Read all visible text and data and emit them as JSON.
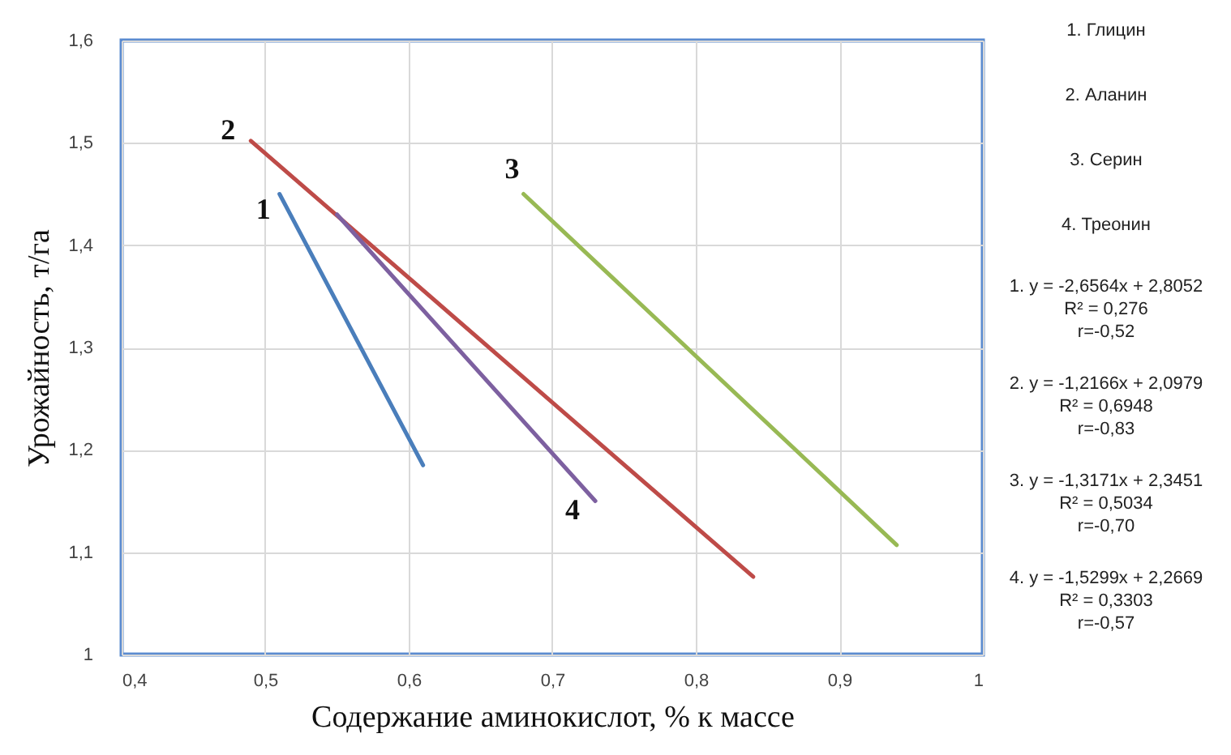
{
  "chart_data": {
    "type": "line",
    "xlabel": "Содержание аминокислот, % к массе",
    "ylabel": "Урожайность,  т/га",
    "series": [
      {
        "x": [
          0.51,
          0.61
        ],
        "values": [
          1.45,
          1.185
        ],
        "color": "#4a7ebb"
      },
      {
        "x": [
          0.49,
          0.84
        ],
        "values": [
          1.502,
          1.076
        ],
        "color": "#be4b48"
      },
      {
        "x": [
          0.68,
          0.94
        ],
        "values": [
          1.45,
          1.107
        ],
        "color": "#98b954"
      },
      {
        "x": [
          0.55,
          0.73
        ],
        "values": [
          1.43,
          1.15
        ],
        "color": "#7d60a0"
      }
    ],
    "xlim": [
      0.4,
      1
    ],
    "ylim": [
      1,
      1.6
    ],
    "xticks": [
      {
        "value": 0.4,
        "label": "0,4"
      },
      {
        "value": 0.5,
        "label": "0,5"
      },
      {
        "value": 0.6,
        "label": "0,6"
      },
      {
        "value": 0.7,
        "label": "0,7"
      },
      {
        "value": 0.8,
        "label": "0,8"
      },
      {
        "value": 0.9,
        "label": "0,9"
      },
      {
        "value": 1,
        "label": "1"
      }
    ],
    "yticks": [
      {
        "value": 1,
        "label": "1"
      },
      {
        "value": 1.1,
        "label": "1,1"
      },
      {
        "value": 1.2,
        "label": "1,2"
      },
      {
        "value": 1.3,
        "label": "1,3"
      },
      {
        "value": 1.4,
        "label": "1,4"
      },
      {
        "value": 1.5,
        "label": "1,5"
      },
      {
        "value": 1.6,
        "label": "1,6"
      }
    ],
    "grid": true,
    "annotations": [
      {
        "text": "1",
        "x": 0.51,
        "y": 1.45
      },
      {
        "text": "2",
        "x": 0.49,
        "y": 1.502
      },
      {
        "text": "3",
        "x": 0.68,
        "y": 1.45
      },
      {
        "text": "4",
        "x": 0.73,
        "y": 1.15
      },
      "1. Глицин",
      "2. Аланин",
      "3. Серин",
      "4. Треонин",
      "1. y = -2,6564x + 2,8052\nR² = 0,276\nr=-0,52",
      "2. y = -1,2166x + 2,0979\nR² = 0,6948\nr=-0,83",
      "3. y = -1,3171x + 2,3451\nR² = 0,5034\nr=-0,70",
      "4. y = -1,5299x + 2,2669\nR² = 0,3303\nr=-0,57"
    ]
  }
}
